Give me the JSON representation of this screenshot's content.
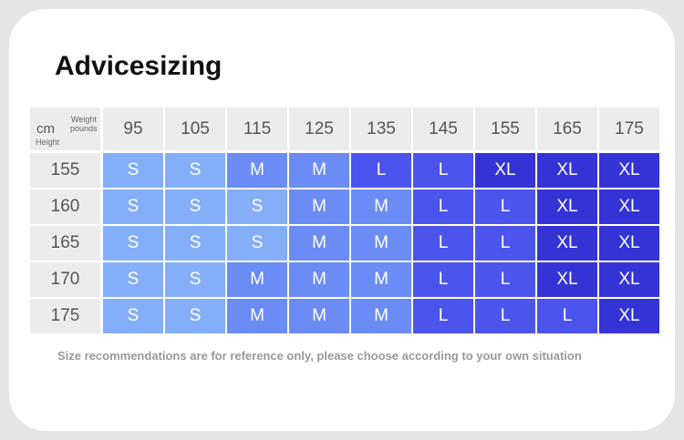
{
  "header": {
    "title": "Advicesizing"
  },
  "table": {
    "corner": {
      "unit": "cm",
      "row_label": "Height",
      "col_label": "Weight",
      "col_unit": "pounds"
    },
    "columns": [
      95,
      105,
      115,
      125,
      135,
      145,
      155,
      165,
      175
    ],
    "row_heights": [
      155,
      160,
      165,
      170,
      175
    ],
    "rows": [
      [
        "S",
        "S",
        "M",
        "M",
        "L",
        "L",
        "XL",
        "XL",
        "XL"
      ],
      [
        "S",
        "S",
        "S",
        "M",
        "M",
        "L",
        "L",
        "XL",
        "XL"
      ],
      [
        "S",
        "S",
        "S",
        "M",
        "M",
        "L",
        "L",
        "XL",
        "XL"
      ],
      [
        "S",
        "S",
        "M",
        "M",
        "M",
        "L",
        "L",
        "XL",
        "XL"
      ],
      [
        "S",
        "S",
        "M",
        "M",
        "M",
        "L",
        "L",
        "L",
        "XL"
      ]
    ],
    "size_colors": {
      "S": "#84aef8",
      "M": "#6a8cf4",
      "L": "#4b54ec",
      "XL": "#3434d6"
    }
  },
  "footnote": "Size recommendations are for reference only, please choose according to your own situation"
}
